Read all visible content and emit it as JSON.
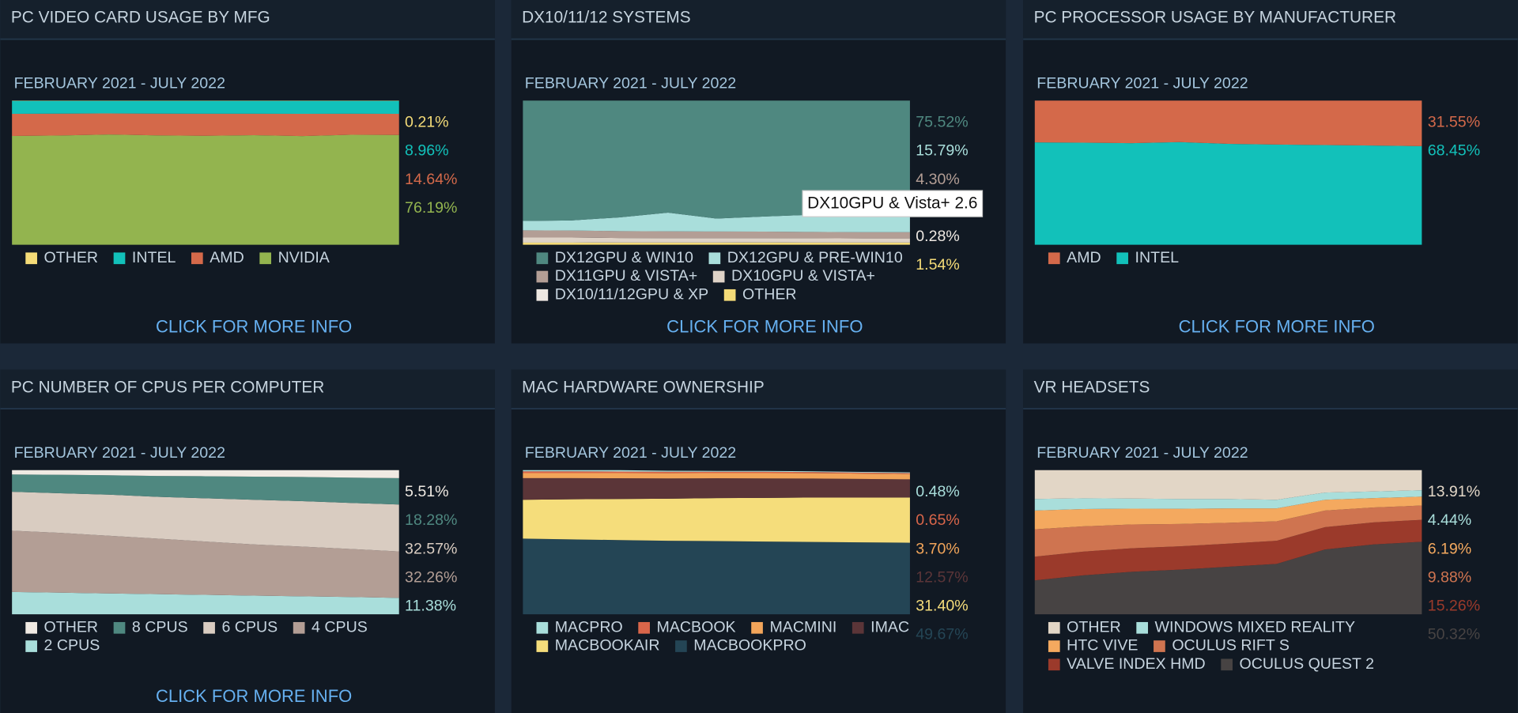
{
  "chart_data": [
    {
      "type": "area",
      "stacked": true,
      "title": "PC VIDEO CARD USAGE BY MFG",
      "subtitle": "FEBRUARY 2021 - JULY 2022",
      "categories": [
        null,
        null,
        null,
        null,
        null,
        null,
        null,
        null,
        null
      ],
      "ylim": [
        0,
        100
      ],
      "legend": "bottom",
      "link": "CLICK FOR MORE INFO",
      "series": [
        {
          "name": "OTHER",
          "color": "#f5dc78",
          "values": [
            0.2,
            0.2,
            0.2,
            0.2,
            0.2,
            0.2,
            0.2,
            0.2,
            0.21
          ],
          "value_labels": [
            null,
            null,
            null,
            null,
            null,
            null,
            null,
            null,
            "0.21%"
          ]
        },
        {
          "name": "INTEL",
          "color": "#12c1ba",
          "values": [
            9.0,
            8.8,
            8.7,
            8.8,
            8.9,
            8.9,
            9.0,
            8.9,
            8.96
          ],
          "value_labels": [
            null,
            null,
            null,
            null,
            null,
            null,
            null,
            null,
            "8.96%"
          ]
        },
        {
          "name": "AMD",
          "color": "#d4694a",
          "values": [
            15.3,
            15.2,
            14.6,
            15.1,
            15.3,
            14.9,
            15.4,
            14.6,
            14.64
          ],
          "value_labels": [
            null,
            null,
            null,
            null,
            null,
            null,
            null,
            null,
            "14.64%"
          ]
        },
        {
          "name": "NVIDIA",
          "color": "#93b44f",
          "values": [
            75.5,
            75.8,
            76.5,
            75.9,
            75.6,
            76.0,
            75.4,
            76.3,
            76.19
          ],
          "value_labels": [
            null,
            null,
            null,
            null,
            null,
            null,
            null,
            null,
            "76.19%"
          ]
        }
      ]
    },
    {
      "type": "area",
      "stacked": true,
      "title": "DX10/11/12 SYSTEMS",
      "subtitle": "FEBRUARY 2021 - JULY 2022",
      "categories": [
        null,
        null,
        null,
        null,
        null,
        null,
        null,
        null,
        null
      ],
      "ylim": [
        0,
        100
      ],
      "legend": "bottom",
      "link": "CLICK FOR MORE INFO",
      "tooltip": "DX10GPU & Vista+ 2.6",
      "series": [
        {
          "name": "DX12GPU & WIN10",
          "color": "#4f8880",
          "values": [
            83.5,
            83.1,
            81.0,
            77.7,
            81.8,
            80.4,
            79.1,
            77.3,
            75.52
          ],
          "value_labels": [
            null,
            null,
            null,
            null,
            null,
            null,
            null,
            null,
            "75.52%"
          ]
        },
        {
          "name": "DX12GPU & PRE-WIN10",
          "color": "#a9dedb",
          "values": [
            6.5,
            7.0,
            9.5,
            13.0,
            9.0,
            10.5,
            12.0,
            14.0,
            15.79
          ],
          "value_labels": [
            null,
            null,
            null,
            null,
            null,
            null,
            null,
            null,
            "15.79%"
          ]
        },
        {
          "name": "DX11GPU & VISTA+",
          "color": "#b39e95",
          "values": [
            5.0,
            4.9,
            4.8,
            4.7,
            4.6,
            4.5,
            4.4,
            4.3,
            4.3
          ],
          "value_labels": [
            null,
            null,
            null,
            null,
            null,
            null,
            null,
            null,
            "4.30%"
          ]
        },
        {
          "name": "DX10GPU & VISTA+",
          "color": "#dfd3c7",
          "values": [
            3.0,
            3.0,
            2.9,
            2.8,
            2.8,
            2.7,
            2.7,
            2.6,
            2.6
          ]
        },
        {
          "name": "DX10/11/12GPU & XP",
          "color": "#eee8e2",
          "values": [
            0.4,
            0.4,
            0.3,
            0.3,
            0.3,
            0.3,
            0.3,
            0.3,
            0.28
          ],
          "value_labels": [
            null,
            null,
            null,
            null,
            null,
            null,
            null,
            null,
            "0.28%"
          ]
        },
        {
          "name": "OTHER",
          "color": "#f5dc78",
          "values": [
            1.6,
            1.6,
            1.5,
            1.5,
            1.5,
            1.6,
            1.5,
            1.5,
            1.54
          ],
          "value_labels": [
            null,
            null,
            null,
            null,
            null,
            null,
            null,
            null,
            "1.54%"
          ]
        }
      ]
    },
    {
      "type": "area",
      "stacked": true,
      "title": "PC PROCESSOR USAGE BY MANUFACTURER",
      "subtitle": "FEBRUARY 2021 - JULY 2022",
      "categories": [
        null,
        null,
        null,
        null,
        null,
        null,
        null,
        null,
        null
      ],
      "ylim": [
        0,
        100
      ],
      "legend": "bottom",
      "link": "CLICK FOR MORE INFO",
      "series": [
        {
          "name": "AMD",
          "color": "#d4694a",
          "values": [
            29.0,
            29.2,
            29.5,
            28.8,
            30.0,
            30.5,
            30.8,
            31.2,
            31.55
          ],
          "value_labels": [
            null,
            null,
            null,
            null,
            null,
            null,
            null,
            null,
            "31.55%"
          ]
        },
        {
          "name": "INTEL",
          "color": "#12c1ba",
          "values": [
            71.0,
            70.8,
            70.5,
            71.2,
            70.0,
            69.5,
            69.2,
            68.8,
            68.45
          ],
          "value_labels": [
            null,
            null,
            null,
            null,
            null,
            null,
            null,
            null,
            "68.45%"
          ]
        }
      ]
    },
    {
      "type": "area",
      "stacked": true,
      "title": "PC NUMBER OF CPUS PER COMPUTER",
      "subtitle": "FEBRUARY 2021 - JULY 2022",
      "categories": [
        null,
        null,
        null,
        null,
        null,
        null,
        null,
        null,
        null
      ],
      "ylim": [
        0,
        100
      ],
      "legend": "bottom",
      "link": "CLICK FOR MORE INFO",
      "series": [
        {
          "name": "OTHER",
          "color": "#f0eae3",
          "values": [
            3.0,
            3.2,
            3.5,
            4.0,
            4.2,
            4.5,
            4.7,
            5.2,
            5.51
          ],
          "value_labels": [
            null,
            null,
            null,
            null,
            null,
            null,
            null,
            null,
            "5.51%"
          ]
        },
        {
          "name": "8 CPUS",
          "color": "#4f8880",
          "values": [
            12.0,
            12.8,
            13.5,
            14.5,
            15.3,
            16.0,
            16.8,
            17.5,
            18.28
          ],
          "value_labels": [
            null,
            null,
            null,
            null,
            null,
            null,
            null,
            null,
            "18.28%"
          ]
        },
        {
          "name": "6 CPUS",
          "color": "#d9ccc1",
          "values": [
            27.0,
            27.5,
            28.5,
            29.0,
            30.0,
            31.0,
            31.5,
            32.0,
            32.57
          ],
          "value_labels": [
            null,
            null,
            null,
            null,
            null,
            null,
            null,
            null,
            "32.57%"
          ]
        },
        {
          "name": "4 CPUS",
          "color": "#b39e95",
          "values": [
            42.5,
            41.5,
            40.0,
            38.5,
            37.0,
            35.5,
            34.5,
            33.3,
            32.26
          ],
          "value_labels": [
            null,
            null,
            null,
            null,
            null,
            null,
            null,
            null,
            "32.26%"
          ]
        },
        {
          "name": "2 CPUS",
          "color": "#a9dedb",
          "values": [
            15.5,
            15.0,
            14.5,
            14.0,
            13.5,
            13.0,
            12.5,
            12.0,
            11.38
          ],
          "value_labels": [
            null,
            null,
            null,
            null,
            null,
            null,
            null,
            null,
            "11.38%"
          ]
        }
      ]
    },
    {
      "type": "area",
      "stacked": true,
      "title": "MAC HARDWARE OWNERSHIP",
      "subtitle": "FEBRUARY 2021 - JULY 2022",
      "categories": [
        null,
        null,
        null,
        null,
        null,
        null,
        null,
        null,
        null
      ],
      "ylim": [
        0,
        100
      ],
      "legend": "bottom",
      "series": [
        {
          "name": "MACPRO",
          "color": "#a9dedb",
          "values": [
            0.8,
            0.8,
            0.9,
            0.7,
            0.6,
            0.6,
            0.5,
            0.5,
            0.48
          ],
          "value_labels": [
            null,
            null,
            null,
            null,
            null,
            null,
            null,
            null,
            "0.48%"
          ]
        },
        {
          "name": "MACBOOK",
          "color": "#d9664a",
          "values": [
            1.2,
            1.2,
            1.1,
            1.0,
            0.9,
            0.9,
            0.8,
            0.7,
            0.65
          ],
          "value_labels": [
            null,
            null,
            null,
            null,
            null,
            null,
            null,
            null,
            "0.65%"
          ]
        },
        {
          "name": "MACMINI",
          "color": "#f2a55a",
          "values": [
            3.5,
            3.5,
            3.6,
            3.6,
            3.6,
            3.7,
            3.7,
            3.7,
            3.7
          ],
          "value_labels": [
            null,
            null,
            null,
            null,
            null,
            null,
            null,
            null,
            "3.70%"
          ]
        },
        {
          "name": "IMAC",
          "color": "#5b3538",
          "values": [
            15.0,
            14.7,
            14.4,
            14.1,
            13.8,
            13.5,
            13.2,
            12.9,
            12.57
          ],
          "value_labels": [
            null,
            null,
            null,
            null,
            null,
            null,
            null,
            null,
            "12.57%"
          ]
        },
        {
          "name": "MACBOOKAIR",
          "color": "#f5dd7b",
          "values": [
            27.0,
            27.8,
            28.5,
            29.2,
            29.8,
            30.3,
            30.8,
            31.1,
            31.4
          ],
          "value_labels": [
            null,
            null,
            null,
            null,
            null,
            null,
            null,
            null,
            "31.40%"
          ]
        },
        {
          "name": "MACBOOKPRO",
          "color": "#244555",
          "values": [
            52.5,
            52.0,
            51.5,
            51.0,
            50.8,
            50.5,
            50.2,
            49.9,
            49.67
          ],
          "value_labels": [
            null,
            null,
            null,
            null,
            null,
            null,
            null,
            null,
            "49.67%"
          ]
        }
      ]
    },
    {
      "type": "area",
      "stacked": true,
      "title": "VR HEADSETS",
      "subtitle": "FEBRUARY 2021 - JULY 2022",
      "categories": [
        null,
        null,
        null,
        null,
        null,
        null,
        null,
        null,
        null
      ],
      "ylim": [
        0,
        100
      ],
      "legend": "bottom",
      "series": [
        {
          "name": "OTHER",
          "color": "#e2d6c6",
          "values": [
            20.0,
            19.5,
            19.7,
            20.0,
            20.0,
            20.5,
            15.5,
            14.8,
            13.91
          ],
          "value_labels": [
            null,
            null,
            null,
            null,
            null,
            null,
            null,
            null,
            "13.91%"
          ]
        },
        {
          "name": "WINDOWS MIXED REALITY",
          "color": "#a9dedb",
          "values": [
            8.0,
            7.5,
            7.0,
            6.8,
            6.5,
            6.0,
            5.0,
            4.6,
            4.44
          ],
          "value_labels": [
            null,
            null,
            null,
            null,
            null,
            null,
            null,
            null,
            "4.44%"
          ]
        },
        {
          "name": "HTC VIVE",
          "color": "#f4a95f",
          "values": [
            13.0,
            12.0,
            11.0,
            10.5,
            10.0,
            9.0,
            7.5,
            6.5,
            6.19
          ],
          "value_labels": [
            null,
            null,
            null,
            null,
            null,
            null,
            null,
            null,
            "6.19%"
          ]
        },
        {
          "name": "OCULUS RIFT S",
          "color": "#cf7450",
          "values": [
            19.0,
            17.5,
            16.5,
            15.5,
            14.5,
            13.5,
            11.5,
            10.3,
            9.88
          ],
          "value_labels": [
            null,
            null,
            null,
            null,
            null,
            null,
            null,
            null,
            "9.88%"
          ]
        },
        {
          "name": "VALVE INDEX HMD",
          "color": "#9b3a2b",
          "values": [
            16.5,
            16.5,
            16.3,
            16.2,
            16.0,
            16.0,
            15.5,
            15.3,
            15.26
          ],
          "value_labels": [
            null,
            null,
            null,
            null,
            null,
            null,
            null,
            null,
            "15.26%"
          ]
        },
        {
          "name": "OCULUS QUEST 2",
          "color": "#474343",
          "values": [
            23.5,
            27.0,
            29.5,
            31.0,
            33.0,
            35.0,
            45.0,
            48.5,
            50.32
          ],
          "value_labels": [
            null,
            null,
            null,
            null,
            null,
            null,
            null,
            null,
            "50.32%"
          ]
        }
      ]
    }
  ]
}
